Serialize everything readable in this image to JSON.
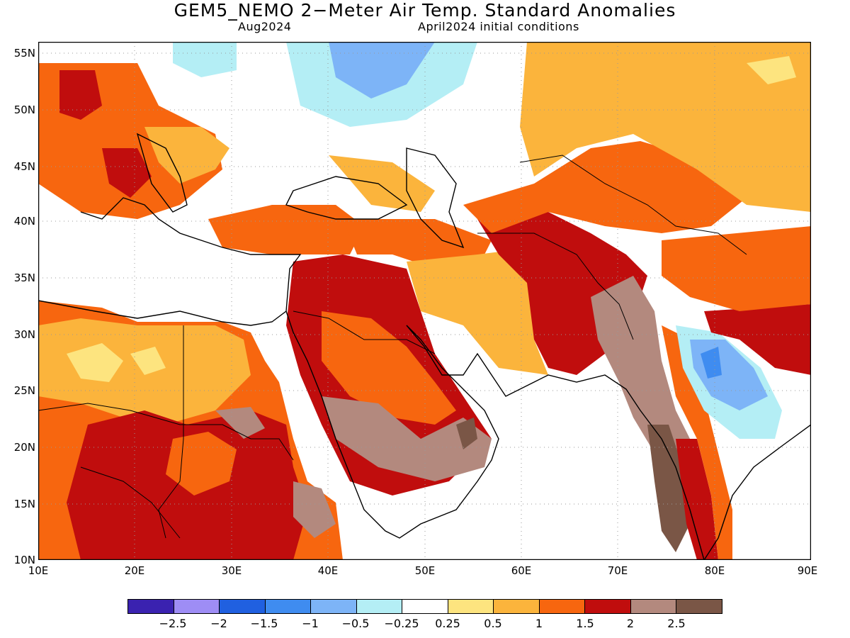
{
  "title": "GEM5_NEMO 2−Meter Air Temp. Standard Anomalies",
  "subtitle_left": "Aug2024",
  "subtitle_right": "April2024 initial conditions",
  "lat_labels": [
    "55N",
    "50N",
    "45N",
    "40N",
    "35N",
    "30N",
    "25N",
    "20N",
    "15N",
    "10N"
  ],
  "lon_labels": [
    "10E",
    "20E",
    "30E",
    "40E",
    "50E",
    "60E",
    "70E",
    "80E",
    "90E"
  ],
  "colorbar": {
    "colors": [
      "#3a22b0",
      "#9e8df5",
      "#2060e0",
      "#3f8cf0",
      "#7db4f7",
      "#b4eef5",
      "#ffffff",
      "#fde47f",
      "#fbb43c",
      "#f7660f",
      "#c00d0d",
      "#b3897e",
      "#7a5646"
    ],
    "labels": [
      "−2.5",
      "−2",
      "−1.5",
      "−1",
      "−0.5",
      "−0.25",
      "0.25",
      "0.5",
      "1",
      "1.5",
      "2",
      "2.5"
    ]
  }
}
